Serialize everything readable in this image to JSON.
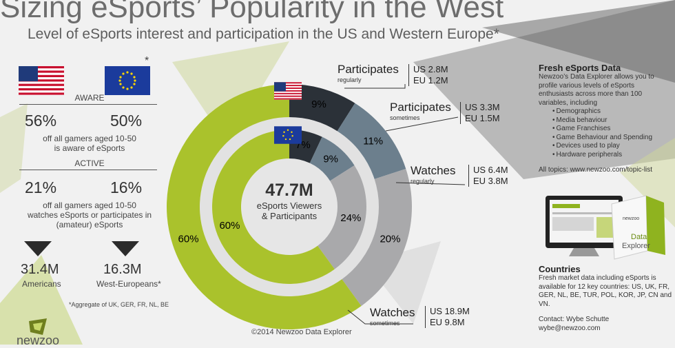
{
  "title": "Sizing eSports’ Popularity in the West",
  "subtitle": "Level of eSports interest and participation in the US and Western Europe*",
  "left": {
    "eu_asterisk": "*",
    "aware_label": "AWARE",
    "aware_us": "56%",
    "aware_eu": "50%",
    "aware_desc_1": "off all gamers aged 10-50",
    "aware_desc_2": "is aware of eSports",
    "active_label": "ACTIVE",
    "active_us": "21%",
    "active_eu": "16%",
    "active_desc_1": "off all gamers aged 10-50",
    "active_desc_2": "watches eSports or participates in",
    "active_desc_3": "(amateur) eSports",
    "total_us": "31.4M",
    "total_us_label": "Americans",
    "total_eu": "16.3M",
    "total_eu_label": "West-Europeans*",
    "footnote": "*Aggregate of UK, GER, FR, NL, BE"
  },
  "center": {
    "total": "47.7M",
    "line1": "eSports Viewers",
    "line2": "& Participants"
  },
  "chart_data": {
    "type": "donut",
    "categories": [
      "Participates regularly",
      "Participates sometimes",
      "Watches regularly",
      "Watches sometimes"
    ],
    "series": [
      {
        "name": "US",
        "ring": "outer",
        "values": [
          9,
          11,
          20,
          60
        ],
        "labels": [
          "9%",
          "11%",
          "20%",
          "60%"
        ]
      },
      {
        "name": "EU",
        "ring": "inner",
        "values": [
          7,
          9,
          24,
          60
        ],
        "labels": [
          "7%",
          "9%",
          "24%",
          "60%"
        ]
      }
    ],
    "colors": [
      "#2b3138",
      "#6c7f8d",
      "#a9a9ab",
      "#aac22c"
    ]
  },
  "categories": [
    {
      "name": "Participates",
      "sub": "regularly",
      "us": "US 2.8M",
      "eu": "EU 1.2M"
    },
    {
      "name": "Participates",
      "sub": "sometimes",
      "us": "US 3.3M",
      "eu": "EU 1.5M"
    },
    {
      "name": "Watches",
      "sub": "regularly",
      "us": "US 6.4M",
      "eu": "EU 3.8M"
    },
    {
      "name": "Watches",
      "sub": "sometimes",
      "us": "US 18.9M",
      "eu": "EU 9.8M"
    }
  ],
  "right": {
    "fresh_title": "Fresh eSports Data",
    "fresh_text": "Newzoo’s Data Explorer allows you to profile various levels of eSports enthusiasts across more than 100 variables, including",
    "fresh_items": [
      "Demographics",
      "Media behaviour",
      "Game Franchises",
      "Game Behaviour and Spending",
      "Devices used to play",
      "Hardware peripherals"
    ],
    "all_topics": "All topics: www.newzoo.com/topic-list",
    "box_brand": "newzoo",
    "box_line1": "Data",
    "box_line2": "Explorer",
    "countries_title": "Countries",
    "countries_text": "Fresh market data including eSports is available for 12 key countries: US, UK, FR, GER, NL, BE, TUR, POL, KOR, JP, CN and VN.",
    "contact": "Contact: Wybe Schutte",
    "email": "wybe@newzoo.com"
  },
  "copyright": "©2014 Newzoo Data Explorer",
  "logo_text": "newzoo"
}
